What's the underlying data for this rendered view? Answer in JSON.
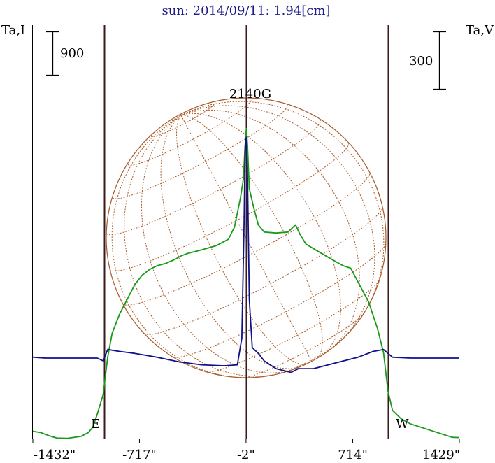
{
  "chart_data": {
    "type": "line",
    "title": "sun: 2014/09/11: 1.94[cm]",
    "left_axis_label": "Ta,I",
    "right_axis_label": "Ta,V",
    "left_scale_bar": "900",
    "right_scale_bar": "300",
    "field_label": "2140G",
    "east_label": "E",
    "west_label": "W",
    "x_tick_labels": [
      "-1432\"",
      "-717\"",
      "-2\"",
      "714\"",
      "1429\""
    ],
    "x_tick_values": [
      -1432,
      -717,
      -2,
      714,
      1429
    ],
    "xlim": [
      -1432,
      1429
    ],
    "solar_limb_arcsec": [
      -955,
      949
    ],
    "grid": false,
    "colors": {
      "intensity": "#1a9a1a",
      "polarization": "#10108c",
      "disk": "#a85a28",
      "markers": "#3a1a1a",
      "title": "#1c1c8c"
    },
    "series": [
      {
        "name": "I",
        "axis": "left",
        "points": [
          [
            -1432,
            165
          ],
          [
            -1380,
            140
          ],
          [
            -1320,
            70
          ],
          [
            -1270,
            25
          ],
          [
            -1200,
            20
          ],
          [
            -1110,
            60
          ],
          [
            -1060,
            140
          ],
          [
            -1030,
            250
          ],
          [
            -1000,
            520
          ],
          [
            -960,
            930
          ],
          [
            -930,
            1700
          ],
          [
            -900,
            2200
          ],
          [
            -850,
            2600
          ],
          [
            -800,
            2900
          ],
          [
            -750,
            3200
          ],
          [
            -700,
            3400
          ],
          [
            -650,
            3520
          ],
          [
            -600,
            3600
          ],
          [
            -540,
            3650
          ],
          [
            -480,
            3730
          ],
          [
            -440,
            3800
          ],
          [
            -400,
            3850
          ],
          [
            -300,
            3930
          ],
          [
            -200,
            4020
          ],
          [
            -120,
            4150
          ],
          [
            -80,
            4400
          ],
          [
            -40,
            5000
          ],
          [
            -20,
            5400
          ],
          [
            -10,
            6000
          ],
          [
            0,
            6450
          ],
          [
            8,
            6100
          ],
          [
            20,
            5200
          ],
          [
            50,
            4800
          ],
          [
            80,
            4450
          ],
          [
            120,
            4300
          ],
          [
            200,
            4280
          ],
          [
            280,
            4300
          ],
          [
            330,
            4450
          ],
          [
            360,
            4250
          ],
          [
            400,
            4050
          ],
          [
            480,
            3900
          ],
          [
            580,
            3720
          ],
          [
            650,
            3600
          ],
          [
            700,
            3550
          ],
          [
            760,
            3200
          ],
          [
            820,
            2850
          ],
          [
            880,
            2300
          ],
          [
            920,
            1800
          ],
          [
            950,
            1000
          ],
          [
            980,
            600
          ],
          [
            1040,
            420
          ],
          [
            1100,
            320
          ],
          [
            1200,
            220
          ],
          [
            1300,
            120
          ],
          [
            1380,
            40
          ],
          [
            1429,
            35
          ]
        ]
      },
      {
        "name": "V",
        "axis": "right",
        "points": [
          [
            -1432,
            400
          ],
          [
            -1350,
            395
          ],
          [
            -1200,
            395
          ],
          [
            -1000,
            395
          ],
          [
            -960,
            380
          ],
          [
            -930,
            440
          ],
          [
            -850,
            430
          ],
          [
            -750,
            420
          ],
          [
            -600,
            400
          ],
          [
            -450,
            375
          ],
          [
            -300,
            360
          ],
          [
            -150,
            355
          ],
          [
            -60,
            360
          ],
          [
            -30,
            500
          ],
          [
            -15,
            1100
          ],
          [
            -8,
            1500
          ],
          [
            0,
            1550
          ],
          [
            8,
            1350
          ],
          [
            20,
            700
          ],
          [
            40,
            450
          ],
          [
            80,
            420
          ],
          [
            120,
            380
          ],
          [
            200,
            340
          ],
          [
            300,
            320
          ],
          [
            350,
            340
          ],
          [
            450,
            340
          ],
          [
            600,
            370
          ],
          [
            750,
            400
          ],
          [
            850,
            430
          ],
          [
            920,
            440
          ],
          [
            980,
            400
          ],
          [
            1100,
            395
          ],
          [
            1300,
            395
          ],
          [
            1429,
            395
          ]
        ]
      }
    ]
  }
}
